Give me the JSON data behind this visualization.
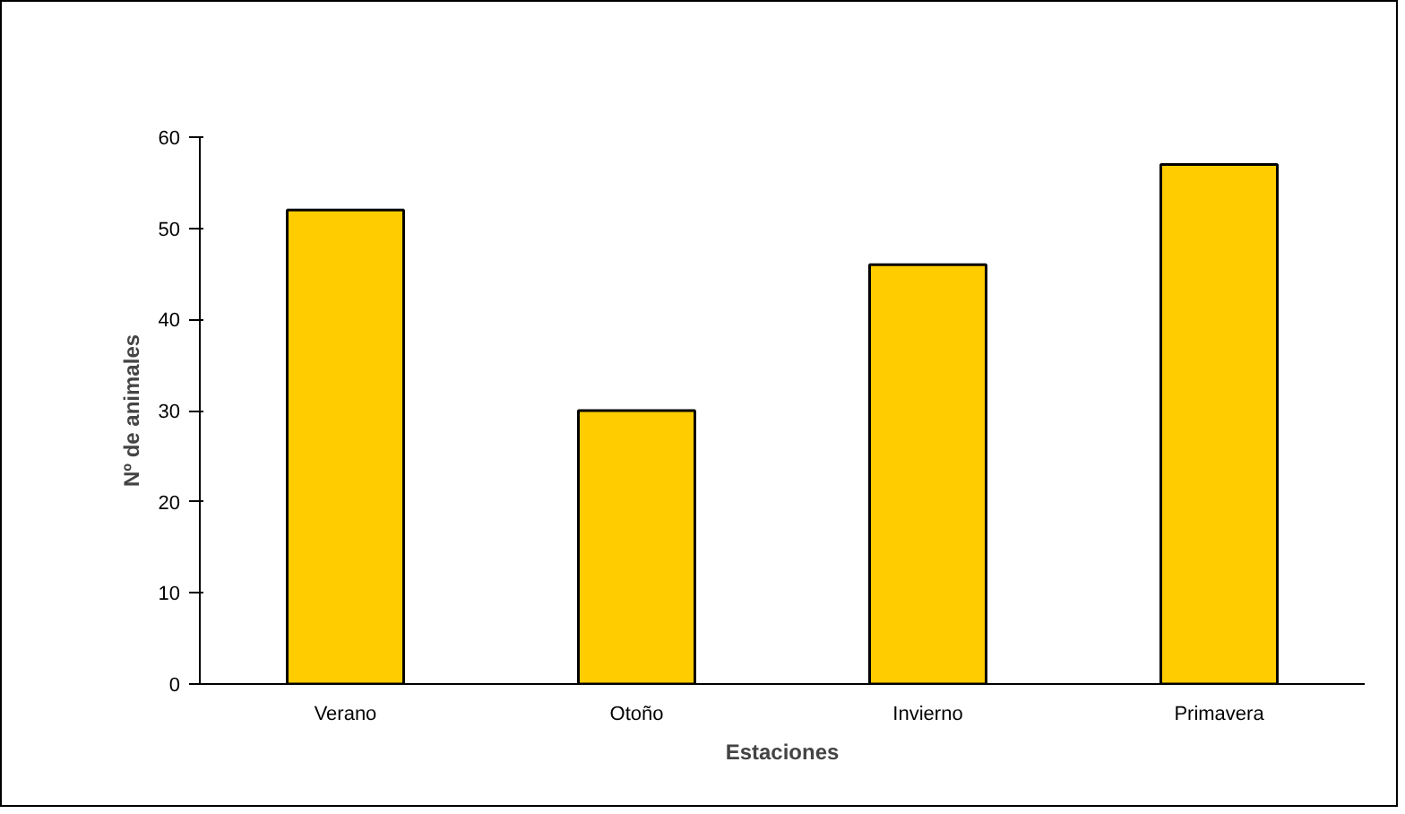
{
  "chart_data": {
    "type": "bar",
    "xlabel": "Estaciones",
    "ylabel": "Nº de animales",
    "categories": [
      "Verano",
      "Otoño",
      "Invierno",
      "Primavera"
    ],
    "values": [
      52,
      30,
      46,
      57
    ],
    "color": "#ffcc00",
    "ylim": [
      0,
      60
    ],
    "yticks": [
      0,
      10,
      20,
      30,
      40,
      50,
      60
    ],
    "grid": false
  }
}
